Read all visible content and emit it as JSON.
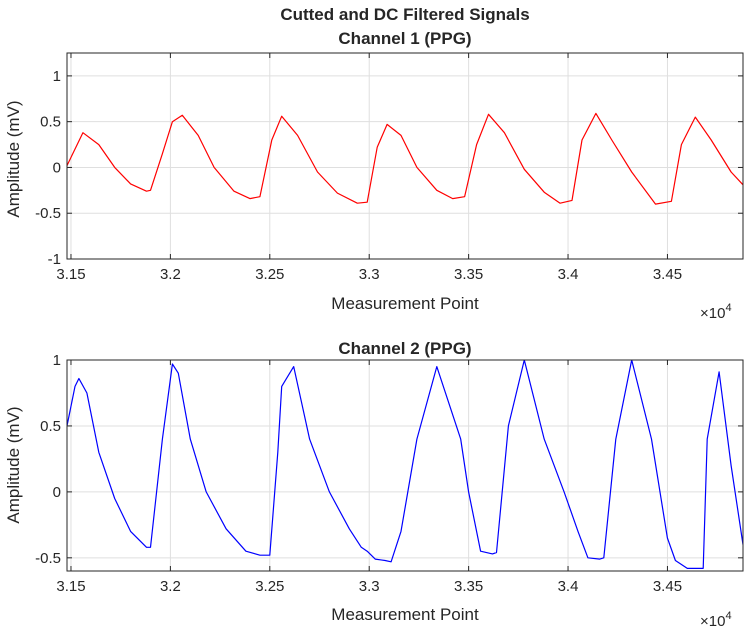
{
  "figure": {
    "suptitle": "Cutted and DC Filtered Signals",
    "background": "#ffffff",
    "axis_color": "#262626",
    "grid_color": "#dfdfdf"
  },
  "chart_data": [
    {
      "type": "line",
      "title": "Channel 1 (PPG)",
      "xlabel": "Measurement Point",
      "ylabel": "Amplitude (mV)",
      "x_multiplier": "×10",
      "x_multiplier_exp": "4",
      "xlim": [
        31480,
        34880
      ],
      "ylim": [
        -1,
        1.25
      ],
      "x_ticks": [
        31500,
        32000,
        32500,
        33000,
        33500,
        34000,
        34500
      ],
      "x_tick_labels": [
        "3.15",
        "3.2",
        "3.25",
        "3.3",
        "3.35",
        "3.4",
        "3.45"
      ],
      "y_ticks": [
        -1,
        -0.5,
        0,
        0.5,
        1
      ],
      "y_tick_labels": [
        "-1",
        "-0.5",
        "0",
        "0.5",
        "1"
      ],
      "grid": true,
      "color": "#ff0000",
      "series": [
        {
          "x": [
            31480,
            31560,
            31640,
            31720,
            31800,
            31880,
            31900,
            31960,
            32010,
            32060,
            32140,
            32220,
            32320,
            32400,
            32450,
            32510,
            32560,
            32640,
            32740,
            32840,
            32940,
            32990,
            33040,
            33090,
            33160,
            33240,
            33340,
            33420,
            33480,
            33540,
            33600,
            33680,
            33780,
            33880,
            33960,
            34020,
            34070,
            34140,
            34220,
            34320,
            34440,
            34520,
            34570,
            34640,
            34720,
            34820,
            34880
          ],
          "y": [
            0.02,
            0.38,
            0.25,
            0.0,
            -0.18,
            -0.26,
            -0.25,
            0.15,
            0.5,
            0.57,
            0.35,
            0.0,
            -0.26,
            -0.34,
            -0.32,
            0.3,
            0.56,
            0.35,
            -0.05,
            -0.28,
            -0.39,
            -0.38,
            0.22,
            0.47,
            0.35,
            0.0,
            -0.25,
            -0.34,
            -0.32,
            0.25,
            0.58,
            0.38,
            -0.02,
            -0.27,
            -0.39,
            -0.36,
            0.3,
            0.59,
            0.3,
            -0.05,
            -0.4,
            -0.37,
            0.25,
            0.55,
            0.3,
            -0.05,
            -0.19
          ]
        }
      ]
    },
    {
      "type": "line",
      "title": "Channel 2 (PPG)",
      "xlabel": "Measurement Point",
      "ylabel": "Amplitude (mV)",
      "x_multiplier": "×10",
      "x_multiplier_exp": "4",
      "xlim": [
        31480,
        34880
      ],
      "ylim": [
        -0.6,
        1.0
      ],
      "x_ticks": [
        31500,
        32000,
        32500,
        33000,
        33500,
        34000,
        34500
      ],
      "x_tick_labels": [
        "3.15",
        "3.2",
        "3.25",
        "3.3",
        "3.35",
        "3.4",
        "3.45"
      ],
      "y_ticks": [
        -0.5,
        0,
        0.5,
        1
      ],
      "y_tick_labels": [
        "-0.5",
        "0",
        "0.5",
        "1"
      ],
      "grid": true,
      "color": "#0000ff",
      "series": [
        {
          "x": [
            31480,
            31520,
            31540,
            31580,
            31640,
            31720,
            31800,
            31880,
            31900,
            31960,
            32010,
            32040,
            32100,
            32180,
            32280,
            32380,
            32450,
            32500,
            32540,
            32560,
            32620,
            32700,
            32800,
            32900,
            32960,
            32990,
            33030,
            33080,
            33110,
            33160,
            33240,
            33340,
            33460,
            33500,
            33560,
            33620,
            33640,
            33700,
            33780,
            33880,
            33980,
            34050,
            34100,
            34160,
            34180,
            34240,
            34320,
            34420,
            34500,
            34540,
            34600,
            34680,
            34700,
            34760,
            34820,
            34880
          ],
          "y": [
            0.5,
            0.8,
            0.86,
            0.75,
            0.3,
            -0.05,
            -0.3,
            -0.42,
            -0.42,
            0.4,
            0.97,
            0.9,
            0.4,
            0.0,
            -0.28,
            -0.45,
            -0.48,
            -0.48,
            0.3,
            0.8,
            0.95,
            0.4,
            0.0,
            -0.28,
            -0.42,
            -0.45,
            -0.51,
            -0.52,
            -0.53,
            -0.3,
            0.4,
            0.95,
            0.4,
            0.0,
            -0.45,
            -0.47,
            -0.46,
            0.5,
            1.0,
            0.4,
            0.0,
            -0.3,
            -0.5,
            -0.51,
            -0.5,
            0.4,
            1.0,
            0.4,
            -0.35,
            -0.52,
            -0.58,
            -0.58,
            0.4,
            0.91,
            0.2,
            -0.4
          ]
        }
      ]
    }
  ]
}
